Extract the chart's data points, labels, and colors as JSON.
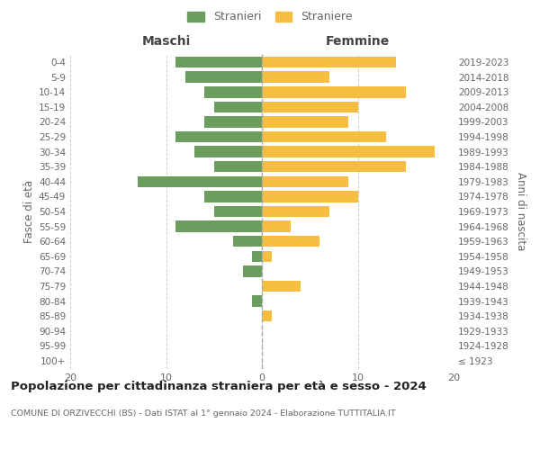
{
  "age_groups": [
    "100+",
    "95-99",
    "90-94",
    "85-89",
    "80-84",
    "75-79",
    "70-74",
    "65-69",
    "60-64",
    "55-59",
    "50-54",
    "45-49",
    "40-44",
    "35-39",
    "30-34",
    "25-29",
    "20-24",
    "15-19",
    "10-14",
    "5-9",
    "0-4"
  ],
  "birth_years": [
    "≤ 1923",
    "1924-1928",
    "1929-1933",
    "1934-1938",
    "1939-1943",
    "1944-1948",
    "1949-1953",
    "1954-1958",
    "1959-1963",
    "1964-1968",
    "1969-1973",
    "1974-1978",
    "1979-1983",
    "1984-1988",
    "1989-1993",
    "1994-1998",
    "1999-2003",
    "2004-2008",
    "2009-2013",
    "2014-2018",
    "2019-2023"
  ],
  "maschi": [
    0,
    0,
    0,
    0,
    1,
    0,
    2,
    1,
    3,
    9,
    5,
    6,
    13,
    5,
    7,
    9,
    6,
    5,
    6,
    8,
    9
  ],
  "femmine": [
    0,
    0,
    0,
    1,
    0,
    4,
    0,
    1,
    6,
    3,
    7,
    10,
    9,
    15,
    18,
    13,
    9,
    10,
    15,
    7,
    14
  ],
  "male_color": "#6b9e5e",
  "female_color": "#f5be41",
  "xlim": 20,
  "title": "Popolazione per cittadinanza straniera per età e sesso - 2024",
  "subtitle": "COMUNE DI ORZIVECCHI (BS) - Dati ISTAT al 1° gennaio 2024 - Elaborazione TUTTITALIA.IT",
  "label_maschi": "Maschi",
  "label_femmine": "Femmine",
  "ylabel_left": "Fasce di età",
  "ylabel_right": "Anni di nascita",
  "legend_male": "Stranieri",
  "legend_female": "Straniere",
  "bg_color": "#ffffff",
  "grid_color": "#cccccc",
  "text_color": "#666666",
  "bar_height": 0.75
}
